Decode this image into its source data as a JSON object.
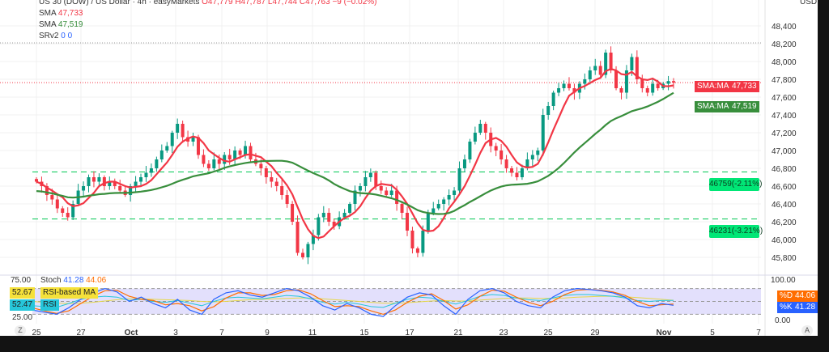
{
  "header": {
    "symbol": "US 30 (DOW) / US Dollar · 4h · easyMarkets",
    "o": "O47,779",
    "h": "H47,787",
    "l": "L47,744",
    "c": "C47,763",
    "chg": "−9 (−0.02%)"
  },
  "indicators": [
    {
      "name": "SMA",
      "value": "47,733",
      "color": "#f23645"
    },
    {
      "name": "SMA",
      "value": "47,519",
      "color": "#388e3c"
    },
    {
      "name": "SRv2",
      "value": "0  0",
      "color": "#2962ff"
    }
  ],
  "axis": {
    "currency": "USD",
    "auto": "A"
  },
  "tags": {
    "sma_fast": {
      "label": "SMA:MA",
      "value": "47,733"
    },
    "sma_slow": {
      "label": "SMA:MA",
      "value": "47,519"
    },
    "d": {
      "label": "%D",
      "value": "44.06"
    },
    "k": {
      "label": "%K",
      "value": "41.28"
    }
  },
  "levels": [
    {
      "price": 46759,
      "label": "46759(-2.11%)"
    },
    {
      "price": 46231,
      "label": "46231(-3.21%)"
    }
  ],
  "osc": {
    "stoch_label": "Stoch",
    "stoch_k": "41.28",
    "stoch_d": "44.06",
    "rsi_ma_value": "52.67",
    "rsi_ma_label": "RSI-based MA",
    "rsi_value": "52.47",
    "rsi_label": "RSI",
    "scale_top": "75.00",
    "scale_bot": "25.00",
    "axis_top": "100.00",
    "axis_bot": "0.00",
    "zoom_btn": "Z"
  },
  "chart_data": {
    "type": "candlestick",
    "yticks": [
      45800,
      46000,
      46200,
      46400,
      46600,
      46800,
      47000,
      47200,
      47400,
      47600,
      47800,
      48000,
      48200,
      48400
    ],
    "ylim": [
      45700,
      48550
    ],
    "xticks": [
      "25",
      "27",
      "Oct",
      "3",
      "7",
      "9",
      "11",
      "15",
      "17",
      "21",
      "23",
      "25",
      "29",
      "Nov",
      "5",
      "7"
    ],
    "colors": {
      "up": "#089981",
      "down": "#f23645",
      "sma_fast": "#f23645",
      "sma_slow": "#388e3c"
    },
    "close": [
      46650,
      46600,
      46500,
      46450,
      46350,
      46300,
      46250,
      46400,
      46550,
      46600,
      46700,
      46650,
      46700,
      46600,
      46650,
      46600,
      46550,
      46500,
      46600,
      46650,
      46700,
      46750,
      46800,
      46900,
      47000,
      47050,
      47200,
      47300,
      47150,
      47100,
      47150,
      46950,
      46850,
      46800,
      46900,
      46850,
      46950,
      46900,
      47000,
      46950,
      47050,
      46900,
      46850,
      46800,
      46700,
      46650,
      46600,
      46500,
      46400,
      46200,
      45850,
      45800,
      45950,
      46050,
      46250,
      46300,
      46200,
      46150,
      46250,
      46300,
      46400,
      46550,
      46600,
      46700,
      46750,
      46600,
      46550,
      46500,
      46550,
      46400,
      46300,
      46100,
      45900,
      45850,
      46100,
      46300,
      46350,
      46400,
      46450,
      46500,
      46550,
      46800,
      46900,
      47100,
      47200,
      47300,
      47200,
      47050,
      47000,
      46900,
      46800,
      46750,
      46700,
      46800,
      46900,
      46950,
      47000,
      47400,
      47500,
      47650,
      47700,
      47750,
      47700,
      47650,
      47750,
      47800,
      47900,
      47950,
      47850,
      48100,
      47900,
      47700,
      47650,
      47900,
      48050,
      47800,
      47700,
      47650,
      47750,
      47700,
      47750,
      47780,
      47763
    ],
    "stoch_k": [
      30,
      25,
      20,
      35,
      55,
      70,
      80,
      72,
      50,
      60,
      45,
      35,
      55,
      30,
      20,
      55,
      70,
      75,
      65,
      60,
      70,
      80,
      75,
      60,
      40,
      30,
      45,
      35,
      20,
      15,
      40,
      60,
      70,
      65,
      40,
      20,
      55,
      75,
      80,
      70,
      50,
      40,
      35,
      60,
      75,
      80,
      78,
      75,
      70,
      60,
      40,
      35,
      45,
      41
    ],
    "stoch_d": [
      35,
      28,
      22,
      28,
      45,
      62,
      75,
      76,
      62,
      55,
      52,
      42,
      45,
      40,
      28,
      38,
      58,
      70,
      70,
      64,
      66,
      75,
      77,
      68,
      52,
      38,
      40,
      38,
      28,
      20,
      30,
      48,
      62,
      68,
      52,
      32,
      42,
      62,
      76,
      74,
      60,
      48,
      40,
      50,
      66,
      76,
      78,
      76,
      72,
      64,
      50,
      40,
      42,
      44
    ],
    "rsi": [
      40,
      38,
      36,
      45,
      55,
      60,
      62,
      60,
      52,
      55,
      50,
      48,
      52,
      46,
      40,
      50,
      58,
      60,
      58,
      56,
      60,
      64,
      62,
      56,
      48,
      44,
      48,
      44,
      38,
      36,
      46,
      55,
      60,
      58,
      50,
      44,
      52,
      62,
      66,
      64,
      58,
      54,
      52,
      58,
      64,
      66,
      66,
      64,
      62,
      58,
      52,
      50,
      52,
      52.47
    ],
    "rsi_ma": [
      50,
      48,
      46,
      45,
      46,
      48,
      51,
      54,
      56,
      56,
      55,
      54,
      53,
      52,
      50,
      49,
      50,
      52,
      54,
      55,
      56,
      57,
      58,
      58,
      56,
      54,
      52,
      50,
      48,
      46,
      46,
      47,
      49,
      51,
      52,
      51,
      51,
      53,
      55,
      57,
      58,
      58,
      57,
      57,
      58,
      60,
      61,
      62,
      62,
      61,
      59,
      57,
      55,
      52.67
    ]
  }
}
